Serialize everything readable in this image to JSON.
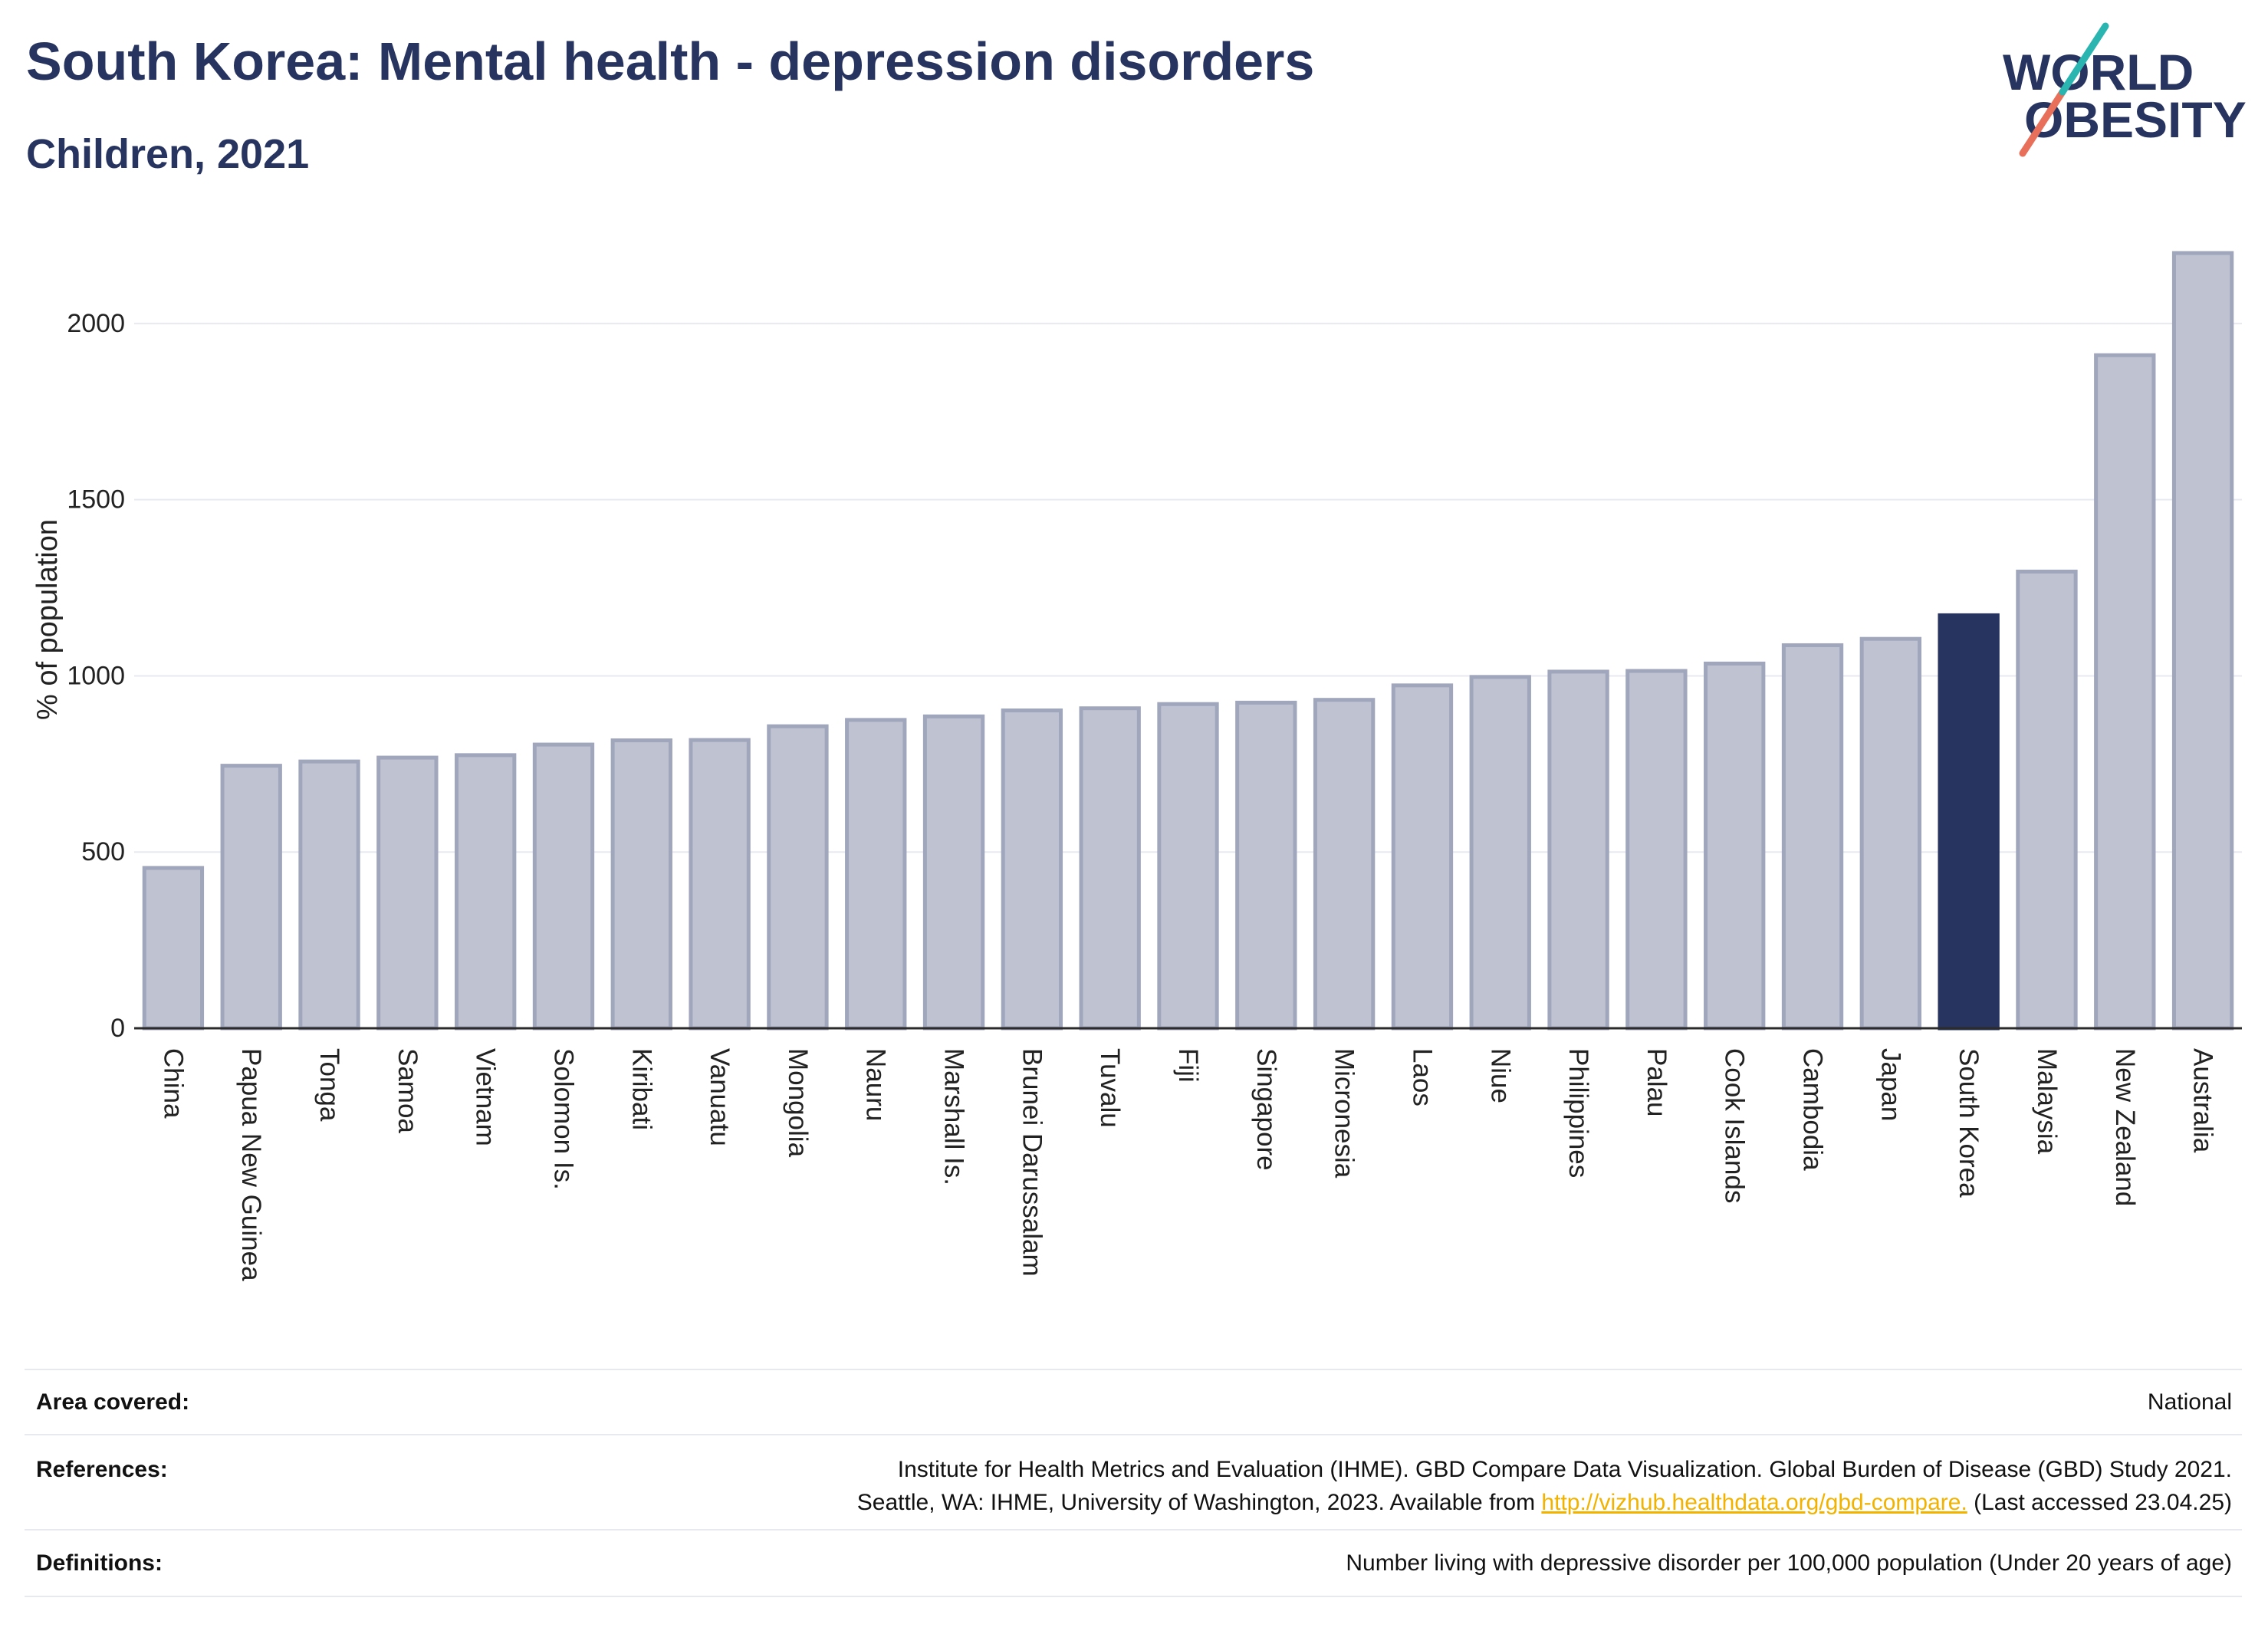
{
  "chart_data": {
    "type": "bar",
    "title": "South Korea: Mental health - depression disorders",
    "subtitle": "Children, 2021",
    "ylabel": "% of population",
    "ylim": [
      0,
      2250
    ],
    "yticks": [
      0,
      500,
      1000,
      1500,
      2000
    ],
    "grid": true,
    "categories": [
      "China",
      "Papua New Guinea",
      "Tonga",
      "Samoa",
      "Vietnam",
      "Solomon Is.",
      "Kiribati",
      "Vanuatu",
      "Mongolia",
      "Nauru",
      "Marshall Is.",
      "Brunei Darussalam",
      "Tuvalu",
      "Fiji",
      "Singapore",
      "Micronesia",
      "Laos",
      "Niue",
      "Philippines",
      "Palau",
      "Cook Islands",
      "Cambodia",
      "Japan",
      "South Korea",
      "Malaysia",
      "New Zealand",
      "Australia"
    ],
    "values": [
      455,
      745,
      757,
      768,
      775,
      805,
      817,
      818,
      857,
      875,
      885,
      902,
      908,
      920,
      924,
      932,
      973,
      997,
      1012,
      1014,
      1035,
      1087,
      1105,
      1172,
      1296,
      1910,
      2200
    ],
    "highlight_index": 23,
    "colors": {
      "bar": "#bfc3d1",
      "bar_border": "#a0a6bb",
      "highlight": "#283460",
      "grid": "#e8eaf0",
      "axis": "#2b2b2b"
    }
  },
  "logo": {
    "line1": "WORLD",
    "line2": "OBESITY",
    "colors": {
      "text": "#283460",
      "slash_upper": "#2bb5b0",
      "slash_lower": "#e8705a"
    }
  },
  "footer": {
    "area_label": "Area covered:",
    "area_value": "National",
    "references_label": "References:",
    "references_line1": "Institute for Health Metrics and Evaluation (IHME). GBD Compare Data Visualization. Global Burden of Disease (GBD) Study 2021.",
    "references_line2_before_link": "Seattle, WA: IHME, University of Washington, 2023. Available from",
    "references_link": "http://vizhub.healthdata.org/gbd-compare.",
    "references_line2_after_link": "(Last accessed 23.04.25)",
    "definitions_label": "Definitions:",
    "definitions_value": "Number living with depressive disorder per 100,000 population (Under 20 years of age)",
    "link_color": "#f2b200"
  }
}
